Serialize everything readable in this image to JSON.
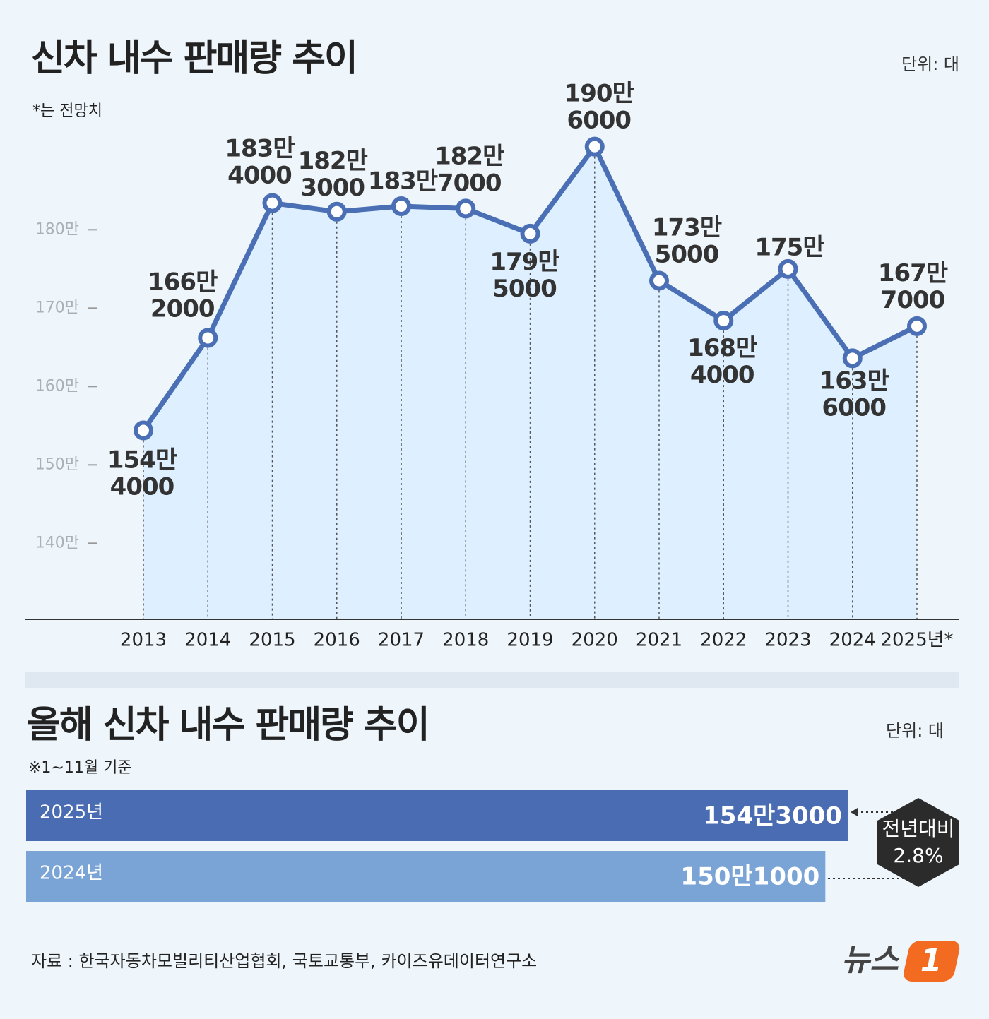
{
  "chart_data": [
    {
      "type": "line",
      "title": "신차 내수 판매량 추이",
      "unit": "단위: 대",
      "note": "*는 전망치",
      "categories": [
        "2013",
        "2014",
        "2015",
        "2016",
        "2017",
        "2018",
        "2019",
        "2020",
        "2021",
        "2022",
        "2023",
        "2024",
        "2025년*"
      ],
      "values": [
        1544000,
        1662000,
        1834000,
        1823000,
        1830000,
        1827000,
        1795000,
        1906000,
        1735000,
        1684000,
        1750000,
        1636000,
        1677000
      ],
      "value_labels": [
        "154만\n4000",
        "166만\n2000",
        "183만\n4000",
        "182만\n3000",
        "183만",
        "182만\n7000",
        "179만\n5000",
        "190만\n6000",
        "173만\n5000",
        "168만\n4000",
        "175만",
        "163만\n6000",
        "167만\n7000"
      ],
      "color": "#4a6fb5",
      "ylim": [
        1303000,
        2003000
      ],
      "yticks": [
        {
          "value": 1400000,
          "label": "140만"
        },
        {
          "value": 1500000,
          "label": "150만"
        },
        {
          "value": 1600000,
          "label": "160만"
        },
        {
          "value": 1700000,
          "label": "170만"
        },
        {
          "value": 1800000,
          "label": "180만"
        }
      ]
    },
    {
      "type": "hbar",
      "title": "올해 신차 내수 판매량 추이",
      "unit": "단위: 대",
      "note": "※1~11월 기준",
      "categories": [
        "2025년",
        "2024년"
      ],
      "values": [
        1543000,
        1501000
      ],
      "value_labels": [
        "154만3000",
        "150만1000"
      ],
      "colors": [
        "#4a6cb3",
        "#7ba4d6"
      ],
      "xlim": [
        0,
        1750000
      ],
      "annotation": "전년대비\n2.8%"
    }
  ],
  "source": "자료 : 한국자동차모빌리티산업협회, 국토교통부, 카이즈유데이터연구소",
  "logo": {
    "text": "뉴스",
    "mark": "1"
  }
}
